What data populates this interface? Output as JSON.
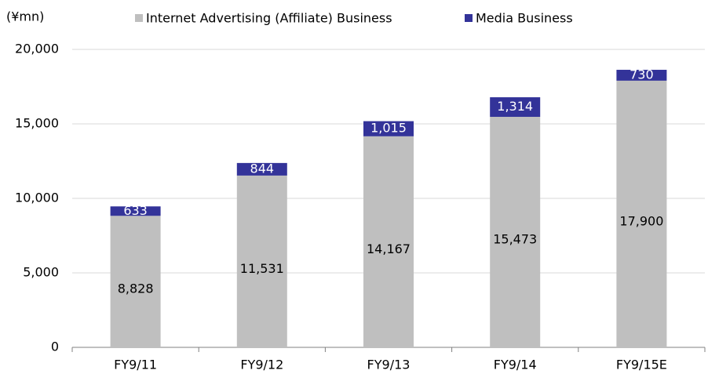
{
  "chart_data": {
    "type": "stacked_bar",
    "y_axis_label": "(¥mn)",
    "categories": [
      "FY9/11",
      "FY9/12",
      "FY9/13",
      "FY9/14",
      "FY9/15E"
    ],
    "series": [
      {
        "name": "Internet Advertising (Affiliate) Business",
        "color": "#bfbfbf",
        "values": [
          8828,
          11531,
          14167,
          15473,
          17900
        ],
        "value_labels": [
          "8,828",
          "11,531",
          "14,167",
          "15,473",
          "17,900"
        ]
      },
      {
        "name": "Media Business",
        "color": "#333399",
        "values": [
          633,
          844,
          1015,
          1314,
          730
        ],
        "value_labels": [
          "633",
          "844",
          "1,015",
          "1,314",
          "730"
        ]
      }
    ],
    "ylim": [
      0,
      20000
    ],
    "yticks": [
      0,
      {
        "value": 5000,
        "label": "5,000"
      },
      {
        "value": 10000,
        "label": "10,000"
      },
      {
        "value": 15000,
        "label": "15,000"
      },
      {
        "value": 20000,
        "label": "20,000"
      }
    ],
    "grid": true
  }
}
